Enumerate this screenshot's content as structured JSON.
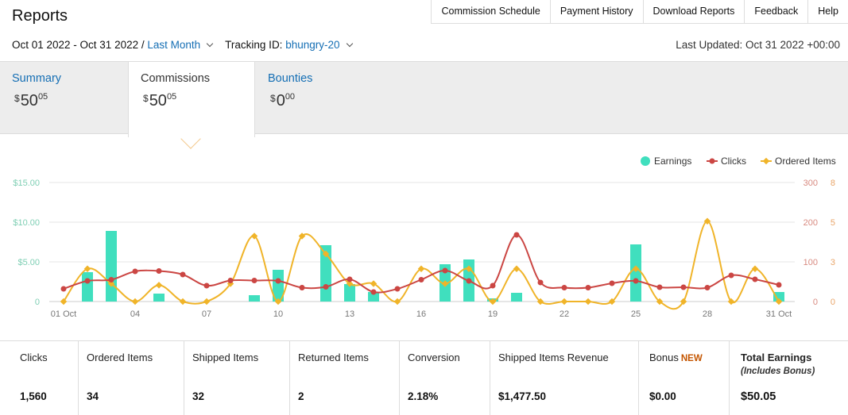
{
  "page": {
    "title": "Reports"
  },
  "topnav": [
    "Commission Schedule",
    "Payment History",
    "Download Reports",
    "Feedback",
    "Help"
  ],
  "filters": {
    "date_range": "Oct 01 2022 - Oct 31 2022 /",
    "date_preset": "Last Month",
    "tracking_label": "Tracking ID:",
    "tracking_id": "bhungry-20",
    "last_updated": "Last Updated: Oct 31 2022 +00:00"
  },
  "tabs": [
    {
      "label": "Summary",
      "currency": "$",
      "whole": "50",
      "cents": "05"
    },
    {
      "label": "Commissions",
      "currency": "$",
      "whole": "50",
      "cents": "05"
    },
    {
      "label": "Bounties",
      "currency": "$",
      "whole": "0",
      "cents": "00"
    }
  ],
  "chart_data": {
    "type": "bar",
    "x": [
      1,
      2,
      3,
      4,
      5,
      6,
      7,
      8,
      9,
      10,
      11,
      12,
      13,
      14,
      15,
      16,
      17,
      18,
      19,
      20,
      21,
      22,
      23,
      24,
      25,
      26,
      27,
      28,
      29,
      30,
      31
    ],
    "xticks": [
      "01 Oct",
      "04",
      "07",
      "10",
      "13",
      "16",
      "19",
      "22",
      "25",
      "28",
      "31 Oct"
    ],
    "xtick_positions": [
      1,
      4,
      7,
      10,
      13,
      16,
      19,
      22,
      25,
      28,
      31
    ],
    "y_left_ticks": [
      "0",
      "$5.00",
      "$10.00",
      "$15.00"
    ],
    "y_left_range": [
      0,
      15
    ],
    "y_clicks_ticks": [
      "0",
      "100",
      "200",
      "300"
    ],
    "y_clicks_range": [
      0,
      300
    ],
    "y_items_ticks": [
      "0",
      "3",
      "5",
      "8"
    ],
    "y_items_range": [
      0,
      8
    ],
    "grid": true,
    "legend_position": "top-right",
    "series": [
      {
        "name": "Earnings",
        "type": "bar",
        "color": "#40dfbe",
        "values": [
          0,
          3.7,
          8.9,
          0,
          1.0,
          0,
          0,
          0,
          0.8,
          4.0,
          0,
          7.1,
          2.2,
          1.2,
          0,
          0,
          4.7,
          5.3,
          0.4,
          1.1,
          0,
          0,
          0,
          0,
          7.2,
          0,
          0,
          0,
          0,
          0,
          1.2
        ]
      },
      {
        "name": "Clicks",
        "type": "line",
        "color": "#cb4643",
        "values": [
          32,
          52,
          55,
          76,
          77,
          68,
          40,
          53,
          53,
          52,
          35,
          37,
          56,
          24,
          32,
          55,
          78,
          52,
          40,
          168,
          48,
          35,
          35,
          46,
          52,
          36,
          36,
          35,
          66,
          56,
          42
        ]
      },
      {
        "name": "Ordered Items",
        "type": "line",
        "color": "#f0b429",
        "values": [
          0,
          2.2,
          1.2,
          0,
          1.1,
          0,
          0,
          1.2,
          4.4,
          0,
          4.4,
          3.2,
          1.2,
          1.2,
          0,
          2.2,
          1.2,
          2.2,
          0,
          2.2,
          0,
          0,
          0,
          0,
          2.2,
          0,
          0,
          5.4,
          0,
          2.2,
          0
        ]
      }
    ]
  },
  "stats": [
    {
      "label": "Clicks",
      "value": "1,560"
    },
    {
      "label": "Ordered Items",
      "value": "34"
    },
    {
      "label": "Shipped Items",
      "value": "32"
    },
    {
      "label": "Returned Items",
      "value": "2"
    },
    {
      "label": "Conversion",
      "value": "2.18%"
    },
    {
      "label": "Shipped Items Revenue",
      "value": "$1,477.50"
    },
    {
      "label": "Bonus",
      "badge": "NEW",
      "value": "$0.00"
    },
    {
      "label": "Total Earnings",
      "sublabel": "(Includes Bonus)",
      "value": "$50.05"
    }
  ]
}
